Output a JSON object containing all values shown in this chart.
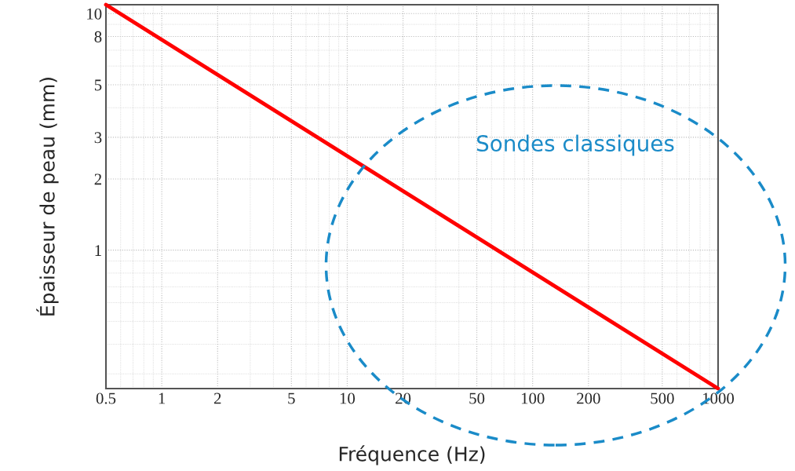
{
  "chart_data": {
    "type": "line",
    "xlabel": "Fréquence (Hz)",
    "ylabel": "Épaisseur de peau (mm)",
    "x": [
      0.5,
      1000
    ],
    "series": [
      {
        "color": "#ff0000",
        "values": [
          10.9,
          0.26
        ]
      }
    ],
    "log": "xy",
    "xlim": [
      0.5,
      1000
    ],
    "ylim": [
      0.26,
      10.9
    ],
    "xticks": [
      0.5,
      1,
      2,
      5,
      10,
      20,
      50,
      100,
      200,
      500,
      1000
    ],
    "yticks": [
      1,
      2,
      3,
      5,
      8,
      10
    ],
    "grid": true,
    "legend": false,
    "marker": "none",
    "line_style": "solid",
    "annotations": [
      "Sondes classiques"
    ]
  }
}
